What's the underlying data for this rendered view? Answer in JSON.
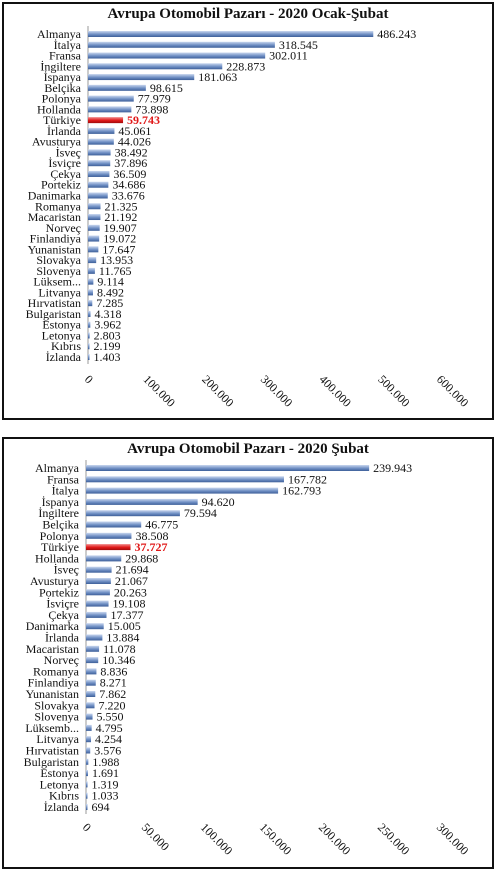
{
  "chart_data": [
    {
      "type": "bar",
      "orientation": "horizontal",
      "title": "Avrupa Otomobil Pazarı - 2020 Ocak-Şubat",
      "xlim": [
        0,
        600000
      ],
      "ticks": [
        "0",
        "100.000",
        "200.000",
        "300.000",
        "400.000",
        "500.000",
        "600.000"
      ],
      "highlight": "Türkiye",
      "highlight_color": "#e01818",
      "bar_color": "#6f8fc4",
      "categories": [
        "Almanya",
        "İtalya",
        "Fransa",
        "İngiltere",
        "İspanya",
        "Belçika",
        "Polonya",
        "Hollanda",
        "Türkiye",
        "İrlanda",
        "Avusturya",
        "İsveç",
        "İsviçre",
        "Çekya",
        "Portekiz",
        "Danimarka",
        "Romanya",
        "Macaristan",
        "Norveç",
        "Finlandiya",
        "Yunanistan",
        "Slovakya",
        "Slovenya",
        "Lüksem...",
        "Litvanya",
        "Hırvatistan",
        "Bulgaristan",
        "Estonya",
        "Letonya",
        "Kıbrıs",
        "İzlanda"
      ],
      "values": [
        486243,
        318545,
        302011,
        228873,
        181063,
        98615,
        77979,
        73898,
        59743,
        45061,
        44026,
        38492,
        37896,
        36509,
        34686,
        33676,
        21325,
        21192,
        19907,
        19072,
        17647,
        13953,
        11765,
        9114,
        8492,
        7285,
        4318,
        3962,
        2803,
        2199,
        1403
      ],
      "value_labels": [
        "486.243",
        "318.545",
        "302.011",
        "228.873",
        "181.063",
        "98.615",
        "77.979",
        "73.898",
        "59.743",
        "45.061",
        "44.026",
        "38.492",
        "37.896",
        "36.509",
        "34.686",
        "33.676",
        "21.325",
        "21.192",
        "19.907",
        "19.072",
        "17.647",
        "13.953",
        "11.765",
        "9.114",
        "8.492",
        "7.285",
        "4.318",
        "3.962",
        "2.803",
        "2.199",
        "1.403"
      ]
    },
    {
      "type": "bar",
      "orientation": "horizontal",
      "title": "Avrupa Otomobil Pazarı - 2020 Şubat",
      "xlim": [
        0,
        300000
      ],
      "ticks": [
        "0",
        "50.000",
        "100.000",
        "150.000",
        "200.000",
        "250.000",
        "300.000"
      ],
      "highlight": "Türkiye",
      "highlight_color": "#e01818",
      "bar_color": "#6f8fc4",
      "categories": [
        "Almanya",
        "Fransa",
        "İtalya",
        "İspanya",
        "İngiltere",
        "Belçika",
        "Polonya",
        "Türkiye",
        "Hollanda",
        "İsveç",
        "Avusturya",
        "Portekiz",
        "İsviçre",
        "Çekya",
        "Danimarka",
        "İrlanda",
        "Macaristan",
        "Norveç",
        "Romanya",
        "Finlandiya",
        "Yunanistan",
        "Slovakya",
        "Slovenya",
        "Lüksemb...",
        "Litvanya",
        "Hırvatistan",
        "Bulgaristan",
        "Estonya",
        "Letonya",
        "Kıbrıs",
        "İzlanda"
      ],
      "values": [
        239943,
        167782,
        162793,
        94620,
        79594,
        46775,
        38508,
        37727,
        29868,
        21694,
        21067,
        20263,
        19108,
        17377,
        15005,
        13884,
        11078,
        10346,
        8836,
        8271,
        7862,
        7220,
        5550,
        4795,
        4254,
        3576,
        1988,
        1691,
        1319,
        1033,
        694
      ],
      "value_labels": [
        "239.943",
        "167.782",
        "162.793",
        "94.620",
        "79.594",
        "46.775",
        "38.508",
        "37.727",
        "29.868",
        "21.694",
        "21.067",
        "20.263",
        "19.108",
        "17.377",
        "15.005",
        "13.884",
        "11.078",
        "10.346",
        "8.836",
        "8.271",
        "7.862",
        "7.220",
        "5.550",
        "4.795",
        "4.254",
        "3.576",
        "1.988",
        "1.691",
        "1.319",
        "1.033",
        "694"
      ]
    }
  ]
}
